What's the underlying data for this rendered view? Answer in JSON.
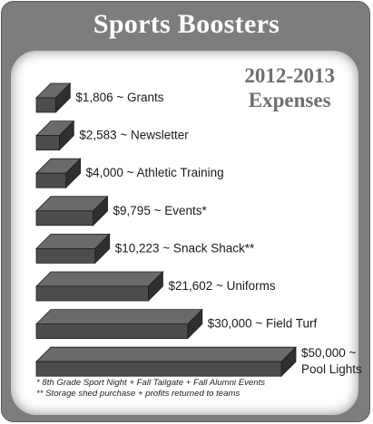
{
  "header": {
    "title": "Sports Boosters"
  },
  "panel": {
    "subtitle_line1": "2012-2013",
    "subtitle_line2": "Expenses"
  },
  "colors": {
    "frame": "#7d7d7d",
    "bar_front": "#4d4d4d",
    "bar_top": "#6a6a6a",
    "bar_side": "#2f2f2f"
  },
  "chart_data": {
    "type": "bar",
    "orientation": "horizontal",
    "categories": [
      "Grants",
      "Newsletter",
      "Athletic Training",
      "Events*",
      "Snack Shack**",
      "Uniforms",
      "Field Turf",
      "Pool Lights"
    ],
    "values": [
      1806,
      2583,
      4000,
      9795,
      10223,
      21602,
      30000,
      50000
    ],
    "labels": [
      [
        "$1,806 ~ Grants"
      ],
      [
        "$2,583 ~ Newsletter"
      ],
      [
        "$4,000 ~ Athletic Training"
      ],
      [
        "$9,795 ~ Events*"
      ],
      [
        "$10,223 ~ Snack Shack**"
      ],
      [
        "$21,602 ~ Uniforms"
      ],
      [
        "$30,000 ~ Field Turf"
      ],
      [
        "$50,000 ~",
        "Pool Lights"
      ]
    ],
    "title": "Sports Boosters",
    "subtitle": "2012-2013 Expenses",
    "xlabel": "",
    "ylabel": ""
  },
  "footnotes": [
    "*  8th Grade Sport Night + Fall Tailgate + Fall Alumni Events",
    "** Storage shed purchase + profits returned to teams"
  ]
}
